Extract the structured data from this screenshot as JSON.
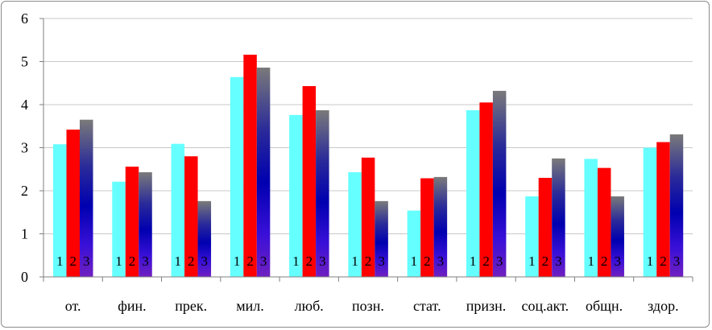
{
  "chart_data": {
    "type": "bar",
    "categories": [
      "от.",
      "фин.",
      "прек.",
      "мил.",
      "люб.",
      "позн.",
      "стат.",
      "призн.",
      "соц.акт.",
      "общн.",
      "здор."
    ],
    "series": [
      {
        "name": "1",
        "values": [
          3.08,
          2.21,
          3.09,
          4.64,
          3.76,
          2.43,
          1.54,
          3.87,
          1.87,
          2.74,
          3.0
        ]
      },
      {
        "name": "2",
        "values": [
          3.42,
          2.56,
          2.8,
          5.16,
          4.43,
          2.77,
          2.29,
          4.05,
          2.3,
          2.53,
          3.13
        ]
      },
      {
        "name": "3",
        "values": [
          3.65,
          2.43,
          1.76,
          4.86,
          3.87,
          1.76,
          2.32,
          4.32,
          2.75,
          1.87,
          3.31
        ]
      }
    ],
    "ylim": [
      0,
      6
    ],
    "yticks": [
      0,
      1,
      2,
      3,
      4,
      5,
      6
    ],
    "grid": true,
    "legend": "none",
    "colors": [
      "#66ffff",
      "#ff0000",
      "#1a1aa0"
    ]
  }
}
